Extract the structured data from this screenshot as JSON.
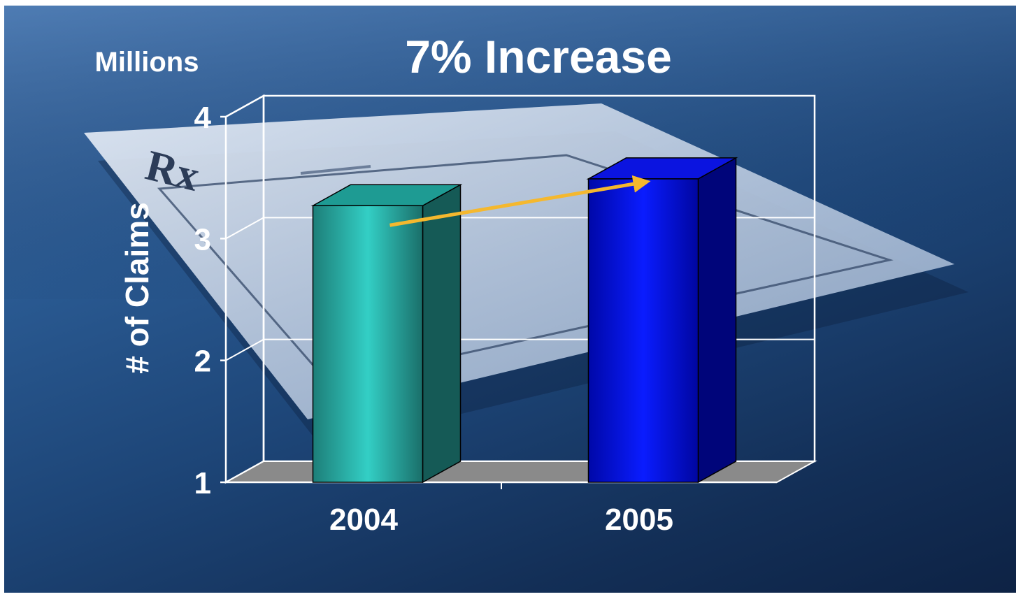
{
  "chart_data": {
    "type": "bar",
    "title": "7% Increase",
    "unit_label": "Millions",
    "ylabel": "# of Claims",
    "xlabel": "",
    "categories": [
      "2004",
      "2005"
    ],
    "values": [
      3.27,
      3.49
    ],
    "ylim": [
      1,
      4
    ],
    "yticks": [
      "1",
      "2",
      "3",
      "4"
    ],
    "grid": true,
    "three_d": true,
    "bar_colors": [
      "#2fc4bb",
      "#0a14ff"
    ],
    "arrow_color": "#f5b82e",
    "legend": "none"
  },
  "background": {
    "icon": "prescription-paper-image"
  }
}
